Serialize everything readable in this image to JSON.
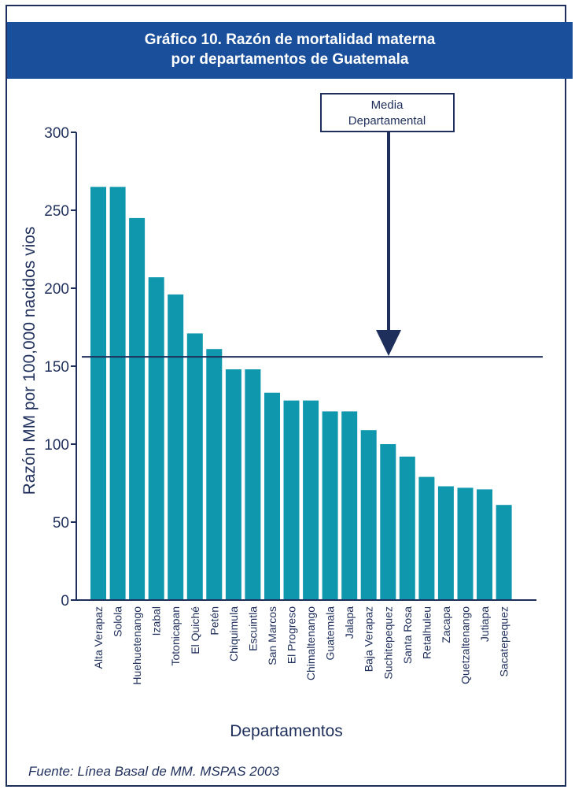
{
  "header": {
    "title_line1": "Gráfico 10. Razón de mortalidad materna",
    "title_line2": "por departamentos de Guatemala"
  },
  "source": "Fuente: Línea Basal de MM. MSPAS 2003",
  "colors": {
    "bar": "#0e97ad",
    "header": "#1a4f9c",
    "axis": "#1f2f5c"
  },
  "chart_data": {
    "type": "bar",
    "title": "Gráfico 10. Razón de mortalidad materna por departamentos de Guatemala",
    "xlabel": "Departamentos",
    "ylabel": "Razón MM por 100,000 nacidos vios",
    "ylim": [
      0,
      300
    ],
    "yticks": [
      0,
      50,
      100,
      150,
      200,
      250,
      300
    ],
    "categories": [
      "Alta Verapaz",
      "Solola",
      "Huehuetenango",
      "Izabal",
      "Totonicapan",
      "El Quiché",
      "Petén",
      "Chiquimula",
      "Escuintla",
      "San Marcos",
      "El Progreso",
      "Chimaltenango",
      "Guatemala",
      "Jalapa",
      "Baja Verapaz",
      "Suchitepequez",
      "Santa Rosa",
      "Retalhuleu",
      "Zacapa",
      "Quetzaltenango",
      "Jutiapa",
      "Sacatepequez"
    ],
    "values": [
      265,
      265,
      245,
      207,
      196,
      171,
      161,
      148,
      148,
      133,
      128,
      128,
      121,
      121,
      109,
      100,
      92,
      79,
      73,
      72,
      71,
      61
    ],
    "reference_line": {
      "label_line1": "Media",
      "label_line2": "Departamental",
      "value": 156
    },
    "grid": false,
    "legend": "none"
  }
}
